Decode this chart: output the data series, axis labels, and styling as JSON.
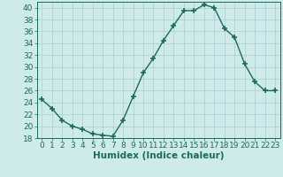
{
  "x": [
    0,
    1,
    2,
    3,
    4,
    5,
    6,
    7,
    8,
    9,
    10,
    11,
    12,
    13,
    14,
    15,
    16,
    17,
    18,
    19,
    20,
    21,
    22,
    23
  ],
  "y": [
    24.5,
    23,
    21,
    20,
    19.5,
    18.7,
    18.5,
    18.3,
    21,
    25,
    29,
    31.5,
    34.5,
    37,
    39.5,
    39.5,
    40.5,
    40,
    36.5,
    35,
    30.5,
    27.5,
    26,
    26
  ],
  "line_color": "#1a6b5a",
  "marker": "+",
  "marker_size": 4,
  "bg_color": "#ceeaea",
  "grid_color": "#aacece",
  "xlabel": "Humidex (Indice chaleur)",
  "ylim": [
    18,
    41
  ],
  "xlim": [
    -0.5,
    23.5
  ],
  "yticks": [
    18,
    20,
    22,
    24,
    26,
    28,
    30,
    32,
    34,
    36,
    38,
    40
  ],
  "xticks": [
    0,
    1,
    2,
    3,
    4,
    5,
    6,
    7,
    8,
    9,
    10,
    11,
    12,
    13,
    14,
    15,
    16,
    17,
    18,
    19,
    20,
    21,
    22,
    23
  ],
  "xlabel_fontsize": 7.5,
  "tick_fontsize": 6.5,
  "linewidth": 1.0
}
